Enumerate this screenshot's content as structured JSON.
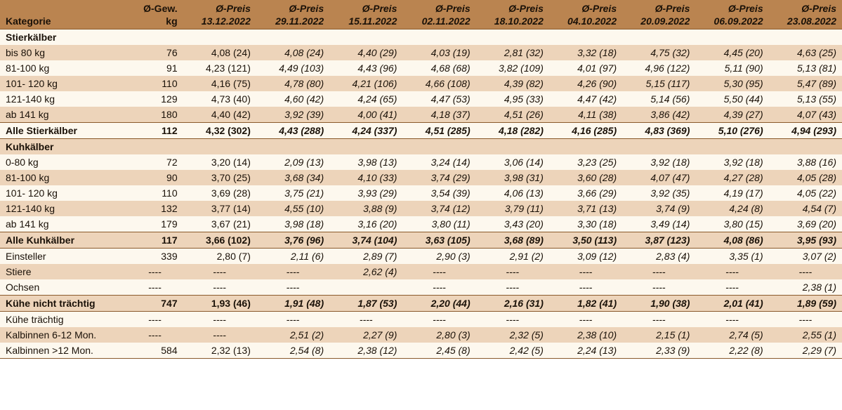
{
  "colors": {
    "header_bg": "#ba8450",
    "row_light": "#fdf8ee",
    "row_dark": "#edd4ba",
    "border": "#8a5a2c",
    "text": "#1a1108"
  },
  "header": {
    "category_label": "Kategorie",
    "weight_label_l1": "Ø-Gew.",
    "weight_label_l2": "kg",
    "price_label": "Ø-Preis",
    "dates": [
      "13.12.2022",
      "29.11.2022",
      "15.11.2022",
      "02.11.2022",
      "18.10.2022",
      "04.10.2022",
      "20.09.2022",
      "06.09.2022",
      "23.08.2022"
    ]
  },
  "rows": [
    {
      "type": "section",
      "zebra": "light",
      "topline": false,
      "bottomline": false,
      "label": "Stierkälber",
      "cells": [
        "",
        "",
        "",
        "",
        "",
        "",
        "",
        "",
        "",
        ""
      ]
    },
    {
      "type": "data",
      "zebra": "dark",
      "label": "bis 80 kg",
      "gw": "76",
      "v": [
        "4,08 (24)",
        "4,08 (24)",
        "4,40 (29)",
        "4,03 (19)",
        "2,81 (32)",
        "3,32 (18)",
        "4,75 (32)",
        "4,45 (20)",
        "4,63 (25)"
      ]
    },
    {
      "type": "data",
      "zebra": "light",
      "label": "81-100 kg",
      "gw": "91",
      "v": [
        "4,23 (121)",
        "4,49 (103)",
        "4,43 (96)",
        "4,68 (68)",
        "3,82 (109)",
        "4,01 (97)",
        "4,96 (122)",
        "5,11 (90)",
        "5,13 (81)"
      ]
    },
    {
      "type": "data",
      "zebra": "dark",
      "label": "101- 120 kg",
      "gw": "110",
      "v": [
        "4,16 (75)",
        "4,78 (80)",
        "4,21 (106)",
        "4,66 (108)",
        "4,39 (82)",
        "4,26 (90)",
        "5,15 (117)",
        "5,30 (95)",
        "5,47 (89)"
      ]
    },
    {
      "type": "data",
      "zebra": "light",
      "label": "121-140 kg",
      "gw": "129",
      "v": [
        "4,73 (40)",
        "4,60 (42)",
        "4,24 (65)",
        "4,47 (53)",
        "4,95 (33)",
        "4,47 (42)",
        "5,14 (56)",
        "5,50 (44)",
        "5,13 (55)"
      ]
    },
    {
      "type": "data",
      "zebra": "dark",
      "label": "ab 141 kg",
      "gw": "180",
      "v": [
        "4,40 (42)",
        "3,92 (39)",
        "4,00 (41)",
        "4,18 (37)",
        "4,51 (26)",
        "4,11 (38)",
        "3,86 (42)",
        "4,39 (27)",
        "4,07 (43)"
      ]
    },
    {
      "type": "total",
      "zebra": "light",
      "topline": true,
      "bottomline": true,
      "label": "Alle Stierkälber",
      "gw": "112",
      "v": [
        "4,32 (302)",
        "4,43 (288)",
        "4,24 (337)",
        "4,51 (285)",
        "4,18 (282)",
        "4,16 (285)",
        "4,83 (369)",
        "5,10 (276)",
        "4,94 (293)"
      ]
    },
    {
      "type": "section",
      "zebra": "dark",
      "label": "Kuhkälber",
      "cells": [
        "",
        "",
        "",
        "",
        "",
        "",
        "",
        "",
        "",
        ""
      ]
    },
    {
      "type": "data",
      "zebra": "light",
      "label": "0-80 kg",
      "gw": "72",
      "v": [
        "3,20 (14)",
        "2,09 (13)",
        "3,98 (13)",
        "3,24 (14)",
        "3,06 (14)",
        "3,23 (25)",
        "3,92 (18)",
        "3,92 (18)",
        "3,88 (16)"
      ]
    },
    {
      "type": "data",
      "zebra": "dark",
      "label": "81-100 kg",
      "gw": "90",
      "v": [
        "3,70 (25)",
        "3,68 (34)",
        "4,10 (33)",
        "3,74 (29)",
        "3,98 (31)",
        "3,60 (28)",
        "4,07 (47)",
        "4,27 (28)",
        "4,05 (28)"
      ]
    },
    {
      "type": "data",
      "zebra": "light",
      "label": "101- 120 kg",
      "gw": "110",
      "v": [
        "3,69 (28)",
        "3,75 (21)",
        "3,93 (29)",
        "3,54 (39)",
        "4,06 (13)",
        "3,66 (29)",
        "3,92 (35)",
        "4,19 (17)",
        "4,05 (22)"
      ]
    },
    {
      "type": "data",
      "zebra": "dark",
      "label": "121-140 kg",
      "gw": "132",
      "v": [
        "3,77 (14)",
        "4,55 (10)",
        "3,88 (9)",
        "3,74 (12)",
        "3,79 (11)",
        "3,71 (13)",
        "3,74 (9)",
        "4,24 (8)",
        "4,54 (7)"
      ]
    },
    {
      "type": "data",
      "zebra": "light",
      "label": "ab 141 kg",
      "gw": "179",
      "v": [
        "3,67 (21)",
        "3,98 (18)",
        "3,16 (20)",
        "3,80 (11)",
        "3,43 (20)",
        "3,30 (18)",
        "3,49 (14)",
        "3,80 (15)",
        "3,69 (20)"
      ]
    },
    {
      "type": "total",
      "zebra": "dark",
      "topline": true,
      "bottomline": true,
      "label": "Alle Kuhkälber",
      "gw": "117",
      "v": [
        "3,66 (102)",
        "3,76 (96)",
        "3,74 (104)",
        "3,63 (105)",
        "3,68 (89)",
        "3,50 (113)",
        "3,87 (123)",
        "4,08 (86)",
        "3,95 (93)"
      ]
    },
    {
      "type": "data",
      "zebra": "light",
      "label": "Einsteller",
      "gw": "339",
      "v": [
        "2,80 (7)",
        "2,11 (6)",
        "2,89 (7)",
        "2,90 (3)",
        "2,91 (2)",
        "3,09 (12)",
        "2,83 (4)",
        "3,35 (1)",
        "3,07 (2)"
      ]
    },
    {
      "type": "data",
      "zebra": "dark",
      "label": "Stiere",
      "gw": "----",
      "v": [
        "----",
        "----",
        "2,62 (4)",
        "----",
        "----",
        "----",
        "----",
        "----",
        "----"
      ]
    },
    {
      "type": "data",
      "zebra": "light",
      "label": "Ochsen",
      "gw": "----",
      "v": [
        "----",
        "----",
        "",
        "----",
        "----",
        "----",
        "----",
        "----",
        "2,38 (1)"
      ]
    },
    {
      "type": "total",
      "zebra": "dark",
      "topline": true,
      "bottomline": true,
      "label": "Kühe nicht trächtig",
      "gw": "747",
      "v": [
        "1,93 (46)",
        "1,91 (48)",
        "1,87 (53)",
        "2,20 (44)",
        "2,16 (31)",
        "1,82 (41)",
        "1,90 (38)",
        "2,01 (41)",
        "1,89 (59)"
      ]
    },
    {
      "type": "data",
      "zebra": "light",
      "label": "Kühe trächtig",
      "gw": "----",
      "v": [
        "----",
        "----",
        "----",
        "----",
        "----",
        "----",
        "----",
        "----",
        "----"
      ]
    },
    {
      "type": "data",
      "zebra": "dark",
      "label": "Kalbinnen 6-12 Mon.",
      "gw": "----",
      "v": [
        "----",
        "2,51 (2)",
        "2,27 (9)",
        "2,80 (3)",
        "2,32 (5)",
        "2,38 (10)",
        "2,15 (1)",
        "2,74 (5)",
        "2,55 (1)"
      ]
    },
    {
      "type": "data",
      "zebra": "light",
      "bottomline": true,
      "label": "Kalbinnen >12 Mon.",
      "gw": "584",
      "v": [
        "2,32 (13)",
        "2,54 (8)",
        "2,38 (12)",
        "2,45 (8)",
        "2,42 (5)",
        "2,24 (13)",
        "2,33 (9)",
        "2,22 (8)",
        "2,29 (7)"
      ]
    }
  ]
}
